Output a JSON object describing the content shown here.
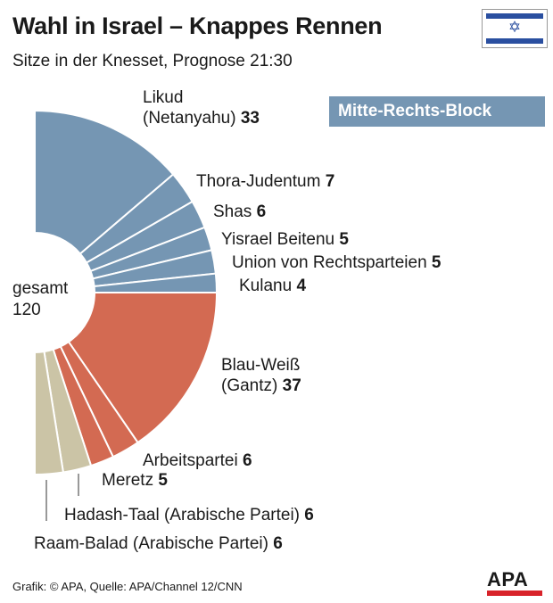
{
  "header": {
    "title": "Wahl in Israel – Knappes Rennen",
    "subtitle": "Sitze in der Knesset, Prognose 21:30"
  },
  "block_label": "Mitte-Rechts-Block",
  "total": {
    "label": "gesamt",
    "value": "120"
  },
  "source": "Grafik: © APA, Quelle: APA/Channel 12/CNN",
  "logo": "APA",
  "colors": {
    "right": "#7596b3",
    "center_left": "#d36a52",
    "arab": "#cbc4a6",
    "block_bg": "#7596b3"
  },
  "chart_data": {
    "type": "pie",
    "title": "Wahl in Israel – Knappes Rennen",
    "subtitle": "Sitze in der Knesset, Prognose 21:30",
    "total": 120,
    "categories": [
      "Likud (Netanyahu)",
      "Thora-Judentum",
      "Shas",
      "Yisrael Beitenu",
      "Union von Rechtsparteien",
      "Kulanu",
      "Blau-Weiß (Gantz)",
      "Arbeitspartei",
      "Meretz",
      "Hadash-Taal (Arabische Partei)",
      "Raam-Balad (Arabische Partei)"
    ],
    "values": [
      33,
      7,
      6,
      5,
      5,
      4,
      37,
      6,
      5,
      6,
      6
    ],
    "groups": [
      "right",
      "right",
      "right",
      "right",
      "right",
      "right",
      "center_left",
      "center_left",
      "center_left",
      "arab",
      "arab"
    ],
    "labels": [
      {
        "name1": "Likud",
        "name2": "(Netanyahu)",
        "value": "33"
      },
      {
        "name1": "Thora-Judentum",
        "value": "7"
      },
      {
        "name1": "Shas",
        "value": "6"
      },
      {
        "name1": "Yisrael Beitenu",
        "value": "5"
      },
      {
        "name1": "Union von Rechtsparteien",
        "value": "5"
      },
      {
        "name1": "Kulanu",
        "value": "4"
      },
      {
        "name1": "Blau-Weiß",
        "name2": "(Gantz)",
        "value": "37"
      },
      {
        "name1": "Arbeitspartei",
        "value": "6"
      },
      {
        "name1": "Meretz",
        "value": "5"
      },
      {
        "name1": "Hadash-Taal (Arabische Partei)",
        "value": "6"
      },
      {
        "name1": "Raam-Balad (Arabische Partei)",
        "value": "6"
      }
    ]
  }
}
